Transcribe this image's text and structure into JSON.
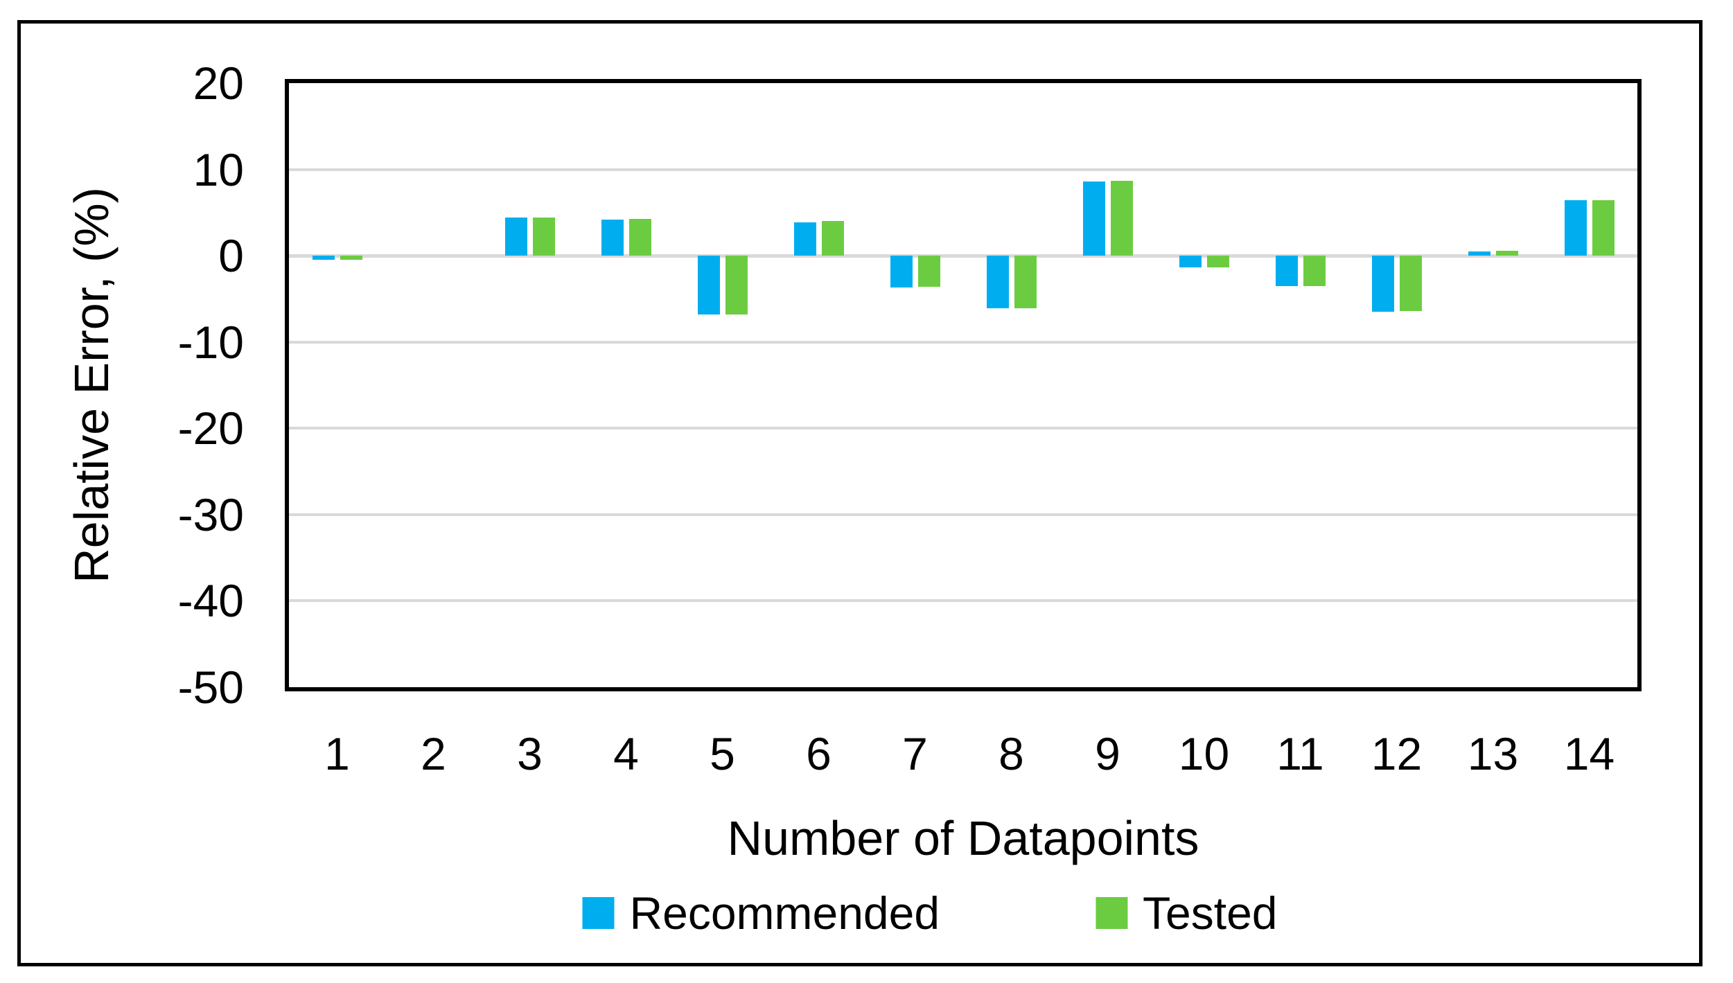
{
  "figure": {
    "background_color": "#FFFFFF",
    "frame_color": "#000000",
    "plot_border_color": "#000000",
    "text_color": "#000000"
  },
  "chart_data": {
    "type": "bar",
    "title": "",
    "xlabel": "Number of Datapoints",
    "ylabel": "Relative Error, (%)",
    "categories": [
      "1",
      "2",
      "3",
      "4",
      "5",
      "6",
      "7",
      "8",
      "9",
      "10",
      "11",
      "12",
      "13",
      "14"
    ],
    "series": [
      {
        "name": "Recommended",
        "color": "#00AEEF",
        "values": [
          -0.5,
          0,
          4.4,
          4.2,
          -6.8,
          3.9,
          -3.7,
          -6.1,
          8.6,
          -1.4,
          -3.5,
          -6.5,
          0.5,
          6.4
        ]
      },
      {
        "name": "Tested",
        "color": "#6CCC41",
        "values": [
          -0.5,
          0,
          4.4,
          4.3,
          -6.8,
          4.0,
          -3.6,
          -6.1,
          8.7,
          -1.4,
          -3.5,
          -6.4,
          0.6,
          6.4
        ]
      }
    ],
    "ylim": [
      -50,
      20
    ],
    "ytick_interval": 10,
    "yticks": [
      "20",
      "10",
      "0",
      "-10",
      "-20",
      "-30",
      "-40",
      "-50"
    ],
    "grid": "horizontal",
    "gridline_color": "#D9D9D9",
    "zero_line_color": "#D9D9D9",
    "legend_position": "bottom"
  }
}
